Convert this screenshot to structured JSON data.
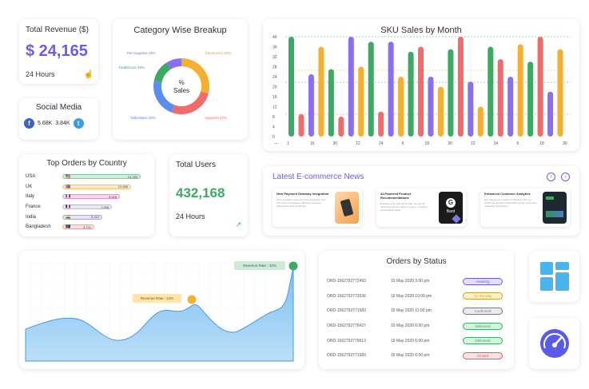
{
  "revenue": {
    "title": "Total Revenue ($)",
    "value": "$ 24,165",
    "period": "24 Hours",
    "icon": "hand-pointer-icon"
  },
  "social": {
    "title": "Social Media",
    "facebook_count": "5.68K",
    "twitter_count": "3.84K"
  },
  "category": {
    "title": "Category Wise Breakup",
    "center_line1": "%",
    "center_line2": "Sales",
    "labels": {
      "pet": "Pet Supplies 16%",
      "electronics": "Electronics 32%",
      "healthcare": "Healthcare 18%",
      "tableware": "TableWare 30%",
      "apparels": "Apparels 27%"
    }
  },
  "sku_chart": {
    "title": "SKU Sales by Month",
    "y_ticks": [
      "40",
      "36",
      "32",
      "28",
      "24",
      "20",
      "16",
      "12",
      "8",
      "4",
      "0"
    ],
    "x_ticks": [
      "1",
      "16",
      "30",
      "12",
      "24",
      "6",
      "18",
      "30",
      "12",
      "24",
      "6",
      "18",
      "30"
    ]
  },
  "countries": {
    "title": "Top Orders by Country",
    "items": [
      {
        "name": "USA",
        "value": "14,780",
        "color": "#cfeedd",
        "border": "#7fcaa0",
        "flag": "🇺🇸"
      },
      {
        "name": "UK",
        "value": "12,486",
        "color": "#fde7c6",
        "border": "#f2c070",
        "flag": "🇬🇧"
      },
      {
        "name": "Italy",
        "value": "9,918",
        "color": "#fbd6ec",
        "border": "#ef8fc8",
        "flag": "🇮🇹"
      },
      {
        "name": "France",
        "value": "7,598",
        "color": "#e9e9ef",
        "border": "#b8b8c6",
        "flag": "🇫🇷"
      },
      {
        "name": "India",
        "value": "5,412",
        "color": "#e6e3fb",
        "border": "#aaa2ee",
        "flag": "🇮🇳"
      },
      {
        "name": "Bangladesh",
        "value": "3,721",
        "color": "#fde0e0",
        "border": "#f0a0a0",
        "flag": "🇧🇩"
      }
    ]
  },
  "users": {
    "title": "Total Users",
    "value": "432,168",
    "period": "24 Hours",
    "icon": "trend-up-icon"
  },
  "news": {
    "title": "Latest E-commerce News",
    "items": [
      {
        "title": "New Payment Gateway Integration",
        "desc": "We're excited to announce the integration of a new payment gateway, allowing seamless transactions and enhancing"
      },
      {
        "title": "AI-Powered Product Recommendations",
        "desc": "Enhance user experience with our new AI-powered recommendation engine, providing personalized deals"
      },
      {
        "title": "Enhanced Customer Analytics",
        "desc": "Dive deeper into customer behavior with our enhanced analytics dashboard, giving you a clear marketing optimization"
      }
    ],
    "bard_label": "Bard"
  },
  "area_chart": {
    "label1": "Revenue Rate : 24%",
    "label2": "Revenue Rate : 42%"
  },
  "order_status": {
    "title": "Orders by Status",
    "rows": [
      {
        "id": "ORD-1562792772493",
        "date": "15 May 2020 3:00 pm",
        "status": "Awaiting",
        "bg": "#e3e0fb",
        "fg": "#6a5ee8"
      },
      {
        "id": "ORD-1562792773536",
        "date": "15 May 2020 10:00 pm",
        "status": "On the way",
        "bg": "#fdf0cf",
        "fg": "#d8a020"
      },
      {
        "id": "ORD-1562792771583",
        "date": "15 May 2020 11:00 pm",
        "status": "Confirmed",
        "bg": "#ececf0",
        "fg": "#777788"
      },
      {
        "id": "ORD-1562792776427",
        "date": "15 May 2020 6:00 pm",
        "status": "Delivered",
        "bg": "#d6f1df",
        "fg": "#3caa62"
      },
      {
        "id": "ORD-1562792779613",
        "date": "15 May 2020 6:00 pm",
        "status": "Delivered",
        "bg": "#d6f1df",
        "fg": "#3caa62"
      },
      {
        "id": "ORD-1562792771583",
        "date": "15 May 2020 6:00 pm",
        "status": "Closed",
        "bg": "#fde0e0",
        "fg": "#e05a5a"
      }
    ]
  },
  "colors": {
    "purple": "#6a5ee8",
    "green": "#3caa62",
    "orange": "#f5b032",
    "red": "#f26b6b",
    "blue": "#5b8def"
  }
}
